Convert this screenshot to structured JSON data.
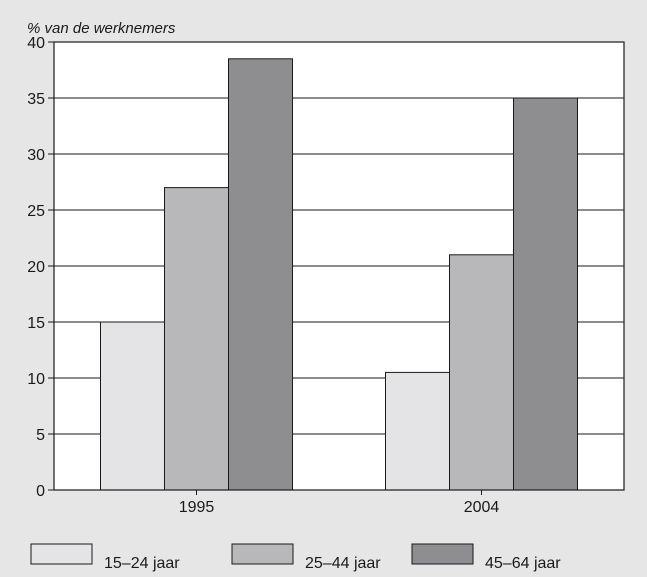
{
  "chart_data": {
    "type": "bar",
    "ylabel": "% van de werknemers",
    "categories": [
      "1995",
      "2004"
    ],
    "ylim": [
      0,
      40
    ],
    "yticks": [
      0,
      5,
      10,
      15,
      20,
      25,
      30,
      35,
      40
    ],
    "grid": true,
    "legend_position": "bottom",
    "series": [
      {
        "name": "15–24 jaar",
        "values": [
          15,
          10.5
        ],
        "color": "#e4e4e6"
      },
      {
        "name": "25–44 jaar",
        "values": [
          27,
          21
        ],
        "color": "#b8b8ba"
      },
      {
        "name": "45–64 jaar",
        "values": [
          38.5,
          35
        ],
        "color": "#8e8e91"
      }
    ]
  }
}
